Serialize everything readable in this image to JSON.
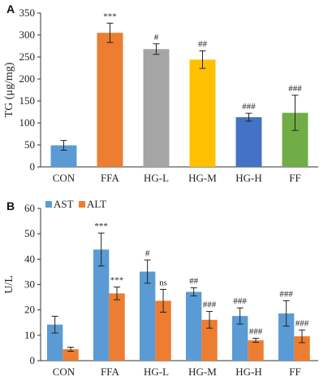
{
  "chart_data": [
    {
      "panel_label": "A",
      "type": "bar",
      "ylabel": "TG (μg/mg)",
      "xlabel": "",
      "ylim": [
        0,
        350
      ],
      "yticks": [
        "0",
        "50",
        "100",
        "150",
        "200",
        "250",
        "300",
        "350"
      ],
      "categories": [
        "CON",
        "FFA",
        "HG-L",
        "HG-M",
        "HG-H",
        "FF"
      ],
      "values": [
        49,
        305,
        268,
        244,
        113,
        123
      ],
      "errors": [
        11,
        22,
        12,
        20,
        9,
        40
      ],
      "significance": [
        "",
        "***",
        "#",
        "##",
        "###",
        "###"
      ],
      "colors": [
        "#5b9bd5",
        "#ed7d31",
        "#a5a5a5",
        "#ffc000",
        "#4472c4",
        "#70ad47"
      ]
    },
    {
      "panel_label": "B",
      "type": "bar",
      "ylabel": "U/L",
      "xlabel": "",
      "ylim": [
        0,
        60
      ],
      "yticks": [
        "0",
        "10",
        "20",
        "30",
        "40",
        "50",
        "60"
      ],
      "categories": [
        "CON",
        "FFA",
        "HG-L",
        "HG-M",
        "HG-H",
        "FF"
      ],
      "legend_position": "top-left",
      "series": [
        {
          "name": "AST",
          "color": "#5b9bd5",
          "values": [
            14.2,
            43.8,
            35.1,
            27.1,
            17.6,
            18.6
          ],
          "errors": [
            3.3,
            6.5,
            4.6,
            1.6,
            3.2,
            5.0
          ],
          "significance": [
            "",
            "***",
            "#",
            "##",
            "###",
            "###"
          ]
        },
        {
          "name": "ALT",
          "color": "#ed7d31",
          "values": [
            4.5,
            26.5,
            23.6,
            16.1,
            8.0,
            9.6
          ],
          "errors": [
            0.8,
            2.5,
            4.5,
            3.3,
            0.8,
            2.5
          ],
          "significance": [
            "",
            "***",
            "ns",
            "###",
            "###",
            "###"
          ]
        }
      ]
    }
  ]
}
